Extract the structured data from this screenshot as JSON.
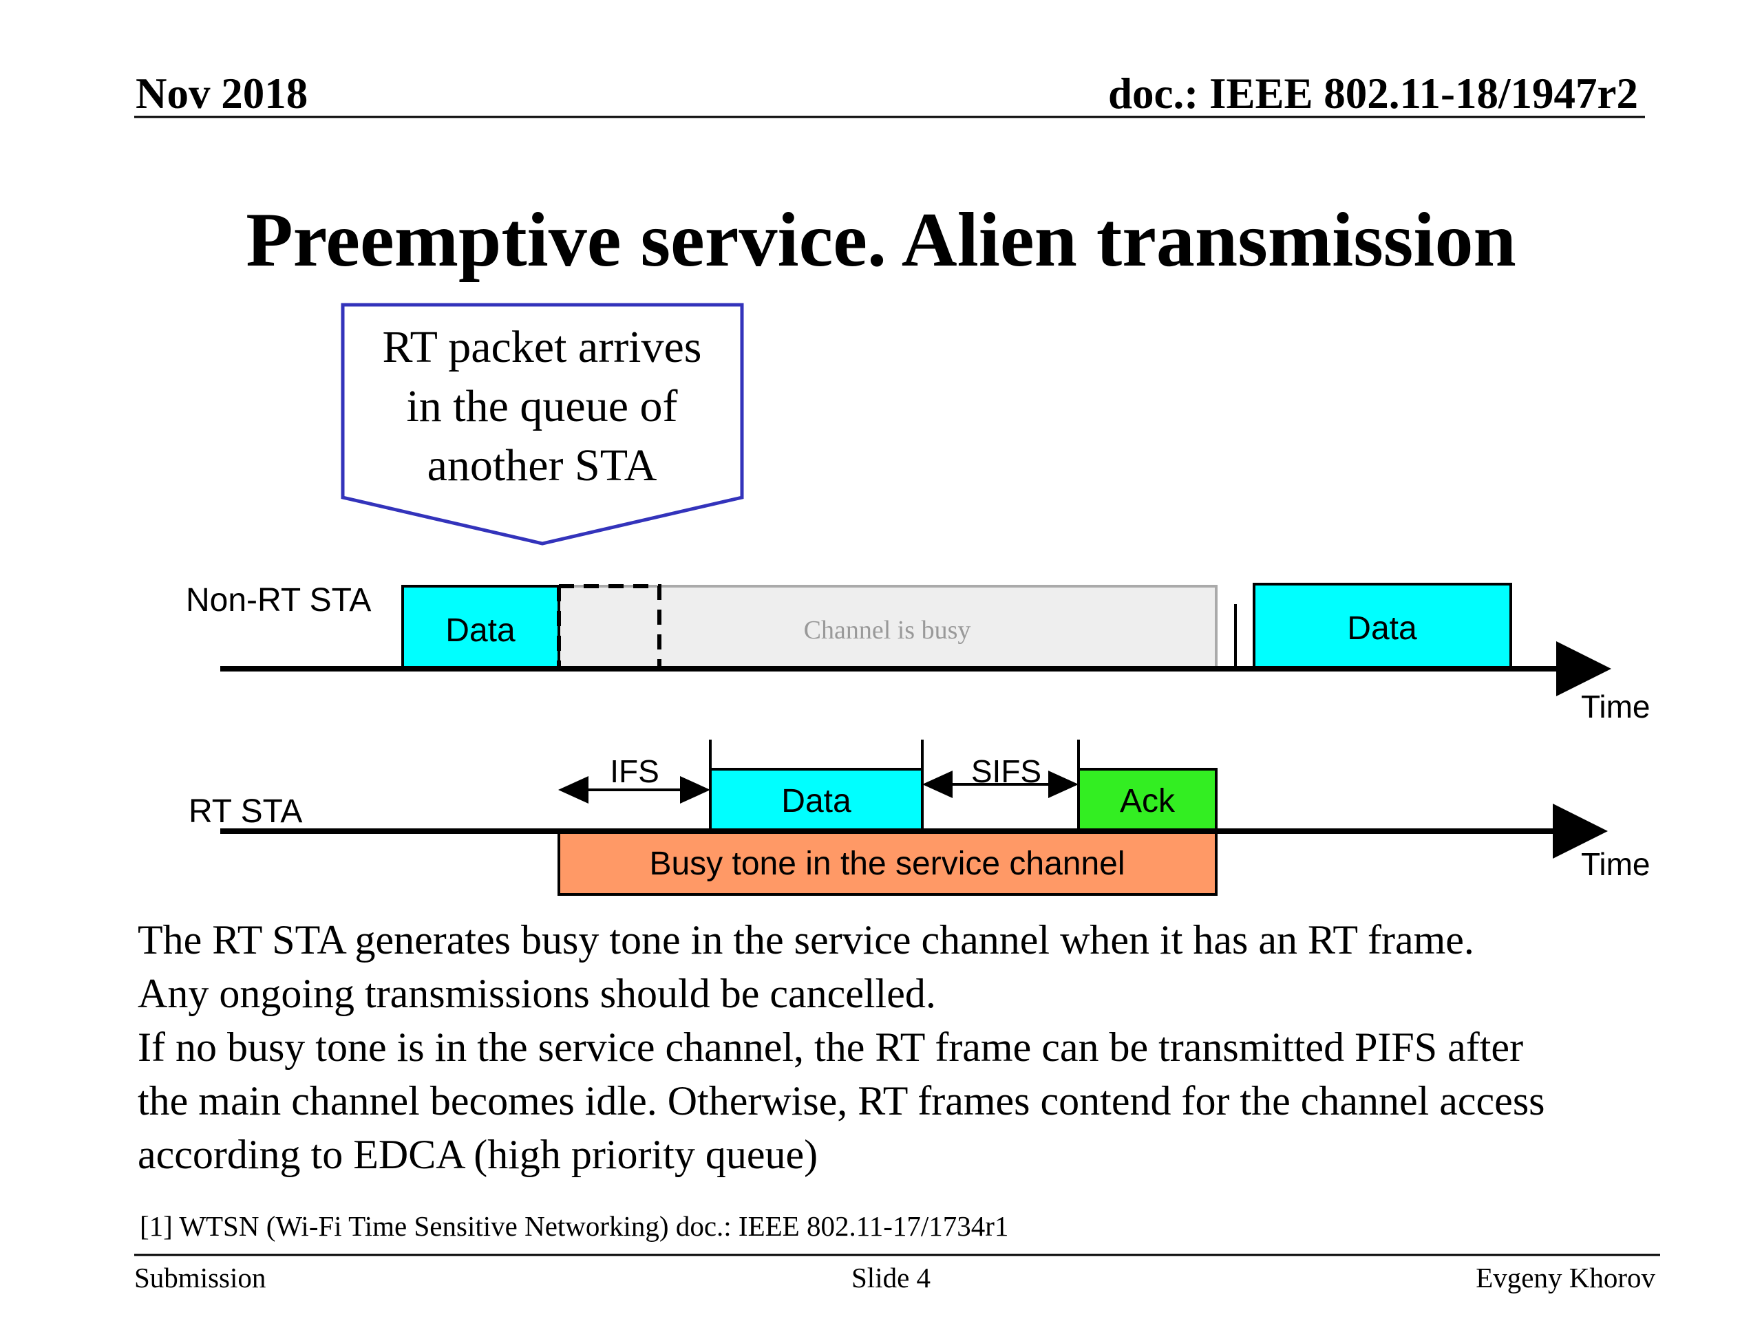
{
  "header": {
    "date": "Nov 2018",
    "doc_id": "doc.: IEEE 802.11-18/1947r2"
  },
  "title": "Preemptive service.  Alien transmission",
  "callout": {
    "lines": [
      "RT packet arrives",
      "in the queue of",
      "another STA"
    ]
  },
  "diagram": {
    "non_rt_label": "Non-RT STA",
    "rt_label": "RT STA",
    "time_label_top": "Time",
    "time_label_bottom": "Time",
    "non_rt_data_1": "Data",
    "channel_busy": "Channel is busy",
    "non_rt_data_2": "Data",
    "ifs_label": "IFS",
    "sifs_label": "SIFS",
    "rt_data": "Data",
    "ack": "Ack",
    "busy_tone": "Busy tone in the service channel"
  },
  "body": [
    "The RT STA generates busy tone in the service channel when it has an RT frame.",
    "Any ongoing transmissions should be cancelled.",
    "If no busy tone is in the service channel, the RT frame can be transmitted PIFS after",
    "the main channel becomes idle. Otherwise, RT frames contend for the channel access",
    "according to EDCA (high priority queue)"
  ],
  "footnote": "[1] WTSN (Wi-Fi Time Sensitive Networking) doc.: IEEE 802.11-17/1734r1",
  "footer": {
    "left": "Submission",
    "center": "Slide 4",
    "right": "Evgeny Khorov"
  },
  "colors": {
    "data_box": "#00ffff",
    "ack_box": "#33ee22",
    "busy_tone_box": "#ff9966",
    "channel_busy_box": "#eeeeee",
    "callout_border": "#3333bb"
  }
}
